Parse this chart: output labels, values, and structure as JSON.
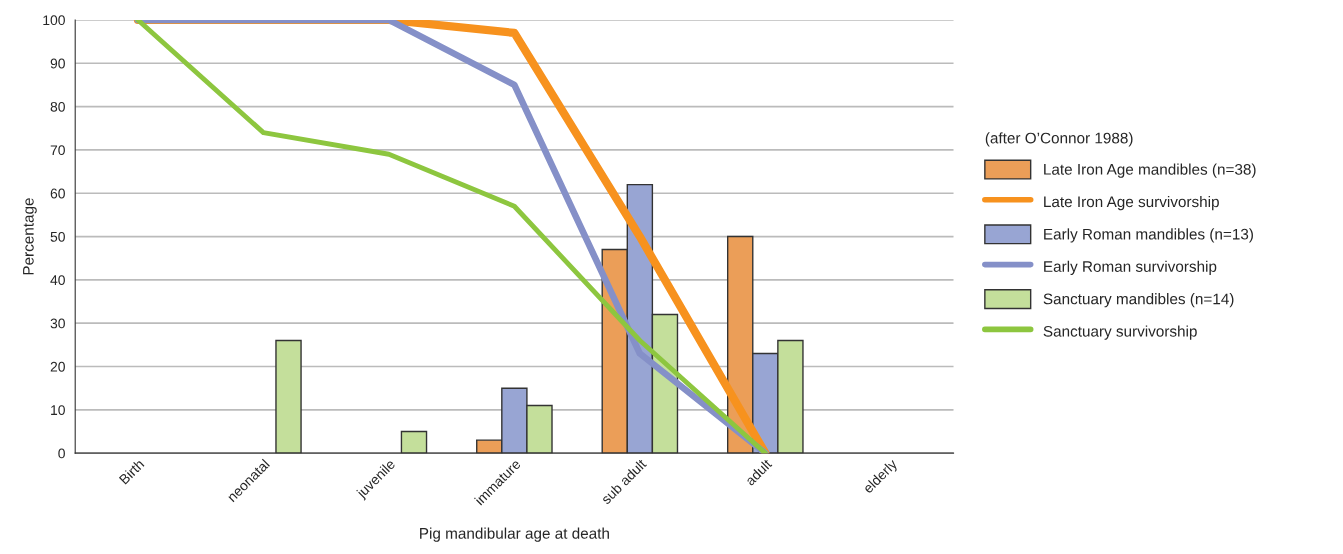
{
  "chart_data": {
    "type": "bar",
    "xlabel": "Pig mandibular age at death",
    "ylabel": "Percentage",
    "legend_title": "(after O’Connor 1988)",
    "categories": [
      "Birth",
      "neonatal",
      "juvenile",
      "immature",
      "sub adult",
      "adult",
      "elderly"
    ],
    "series": [
      {
        "name": "Late Iron Age mandibles (n=38)",
        "color": "#eb9e58",
        "values": [
          null,
          null,
          null,
          3,
          47,
          50,
          null
        ]
      },
      {
        "name": "Late Iron Age survivorship",
        "type": "line",
        "color": "#f7921e",
        "values": [
          100,
          100,
          100,
          97,
          50,
          0,
          null
        ]
      },
      {
        "name": "Early Roman mandibles (n=13)",
        "color": "#98a5d3",
        "values": [
          null,
          null,
          null,
          15,
          62,
          23,
          null
        ]
      },
      {
        "name": "Early Roman survivorship",
        "type": "line",
        "color": "#8590c8",
        "values": [
          100,
          100,
          100,
          85,
          23,
          0,
          null
        ]
      },
      {
        "name": "Sanctuary mandibles (n=14)",
        "color": "#c4df9b",
        "values": [
          null,
          26,
          5,
          11,
          32,
          26,
          null
        ]
      },
      {
        "name": "Sanctuary survivorship",
        "type": "line",
        "color": "#8dc63f",
        "values": [
          100,
          74,
          69,
          57,
          26,
          0,
          null
        ]
      }
    ],
    "ylim": [
      0,
      100
    ],
    "yticks": [
      0,
      10,
      20,
      30,
      40,
      50,
      60,
      70,
      80,
      90,
      100
    ],
    "grid": "y",
    "legend": "right"
  }
}
